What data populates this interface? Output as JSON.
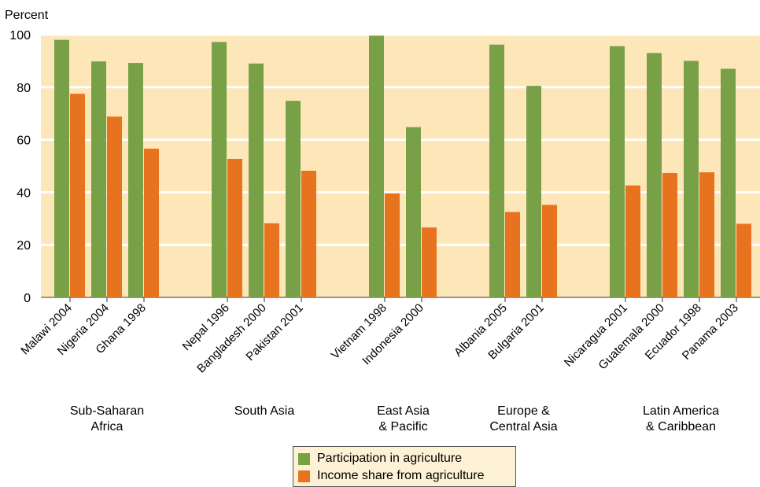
{
  "chart_data": {
    "type": "bar",
    "ylabel": "Percent",
    "ylim": [
      0,
      100
    ],
    "yticks": [
      0,
      20,
      40,
      60,
      80,
      100
    ],
    "grid": true,
    "legend_position": "bottom-center",
    "colors": {
      "participation": "#77a047",
      "income": "#e8731f",
      "plot_background": "#fde6b8",
      "gridline": "#ffffff"
    },
    "categories": [
      "Malawi 2004",
      "Nigeria 2004",
      "Ghana 1998",
      "Nepal 1996",
      "Bangladesh 2000",
      "Pakistan 2001",
      "Vietnam 1998",
      "Indonesia 2000",
      "Albania 2005",
      "Bulgaria 2001",
      "Nicaragua 2001",
      "Guatemala 2000",
      "Ecuador 1998",
      "Panama 2003"
    ],
    "groups": [
      {
        "label_lines": [
          "Sub-Saharan",
          "Africa"
        ],
        "members": [
          "Malawi 2004",
          "Nigeria 2004",
          "Ghana 1998"
        ]
      },
      {
        "label_lines": [
          "South Asia"
        ],
        "members": [
          "Nepal 1996",
          "Bangladesh 2000",
          "Pakistan 2001"
        ]
      },
      {
        "label_lines": [
          "East Asia",
          "& Pacific"
        ],
        "members": [
          "Vietnam 1998",
          "Indonesia 2000"
        ]
      },
      {
        "label_lines": [
          "Europe &",
          "Central Asia"
        ],
        "members": [
          "Albania 2005",
          "Bulgaria 2001"
        ]
      },
      {
        "label_lines": [
          "Latin America",
          "& Caribbean"
        ],
        "members": [
          "Nicaragua 2001",
          "Guatemala 2000",
          "Ecuador 1998",
          "Panama 2003"
        ]
      }
    ],
    "series": [
      {
        "name": "Participation in agriculture",
        "color_key": "participation",
        "values": [
          98,
          89.8,
          89.2,
          97.2,
          89,
          74.8,
          99.6,
          64.8,
          96.2,
          80.5,
          95.6,
          93,
          90,
          87
        ]
      },
      {
        "name": "Income share from agriculture",
        "color_key": "income",
        "values": [
          77.5,
          68.8,
          56.6,
          52.7,
          28.2,
          48.2,
          39.6,
          26.6,
          32.5,
          35.2,
          42.6,
          47.3,
          47.6,
          28
        ]
      }
    ]
  }
}
